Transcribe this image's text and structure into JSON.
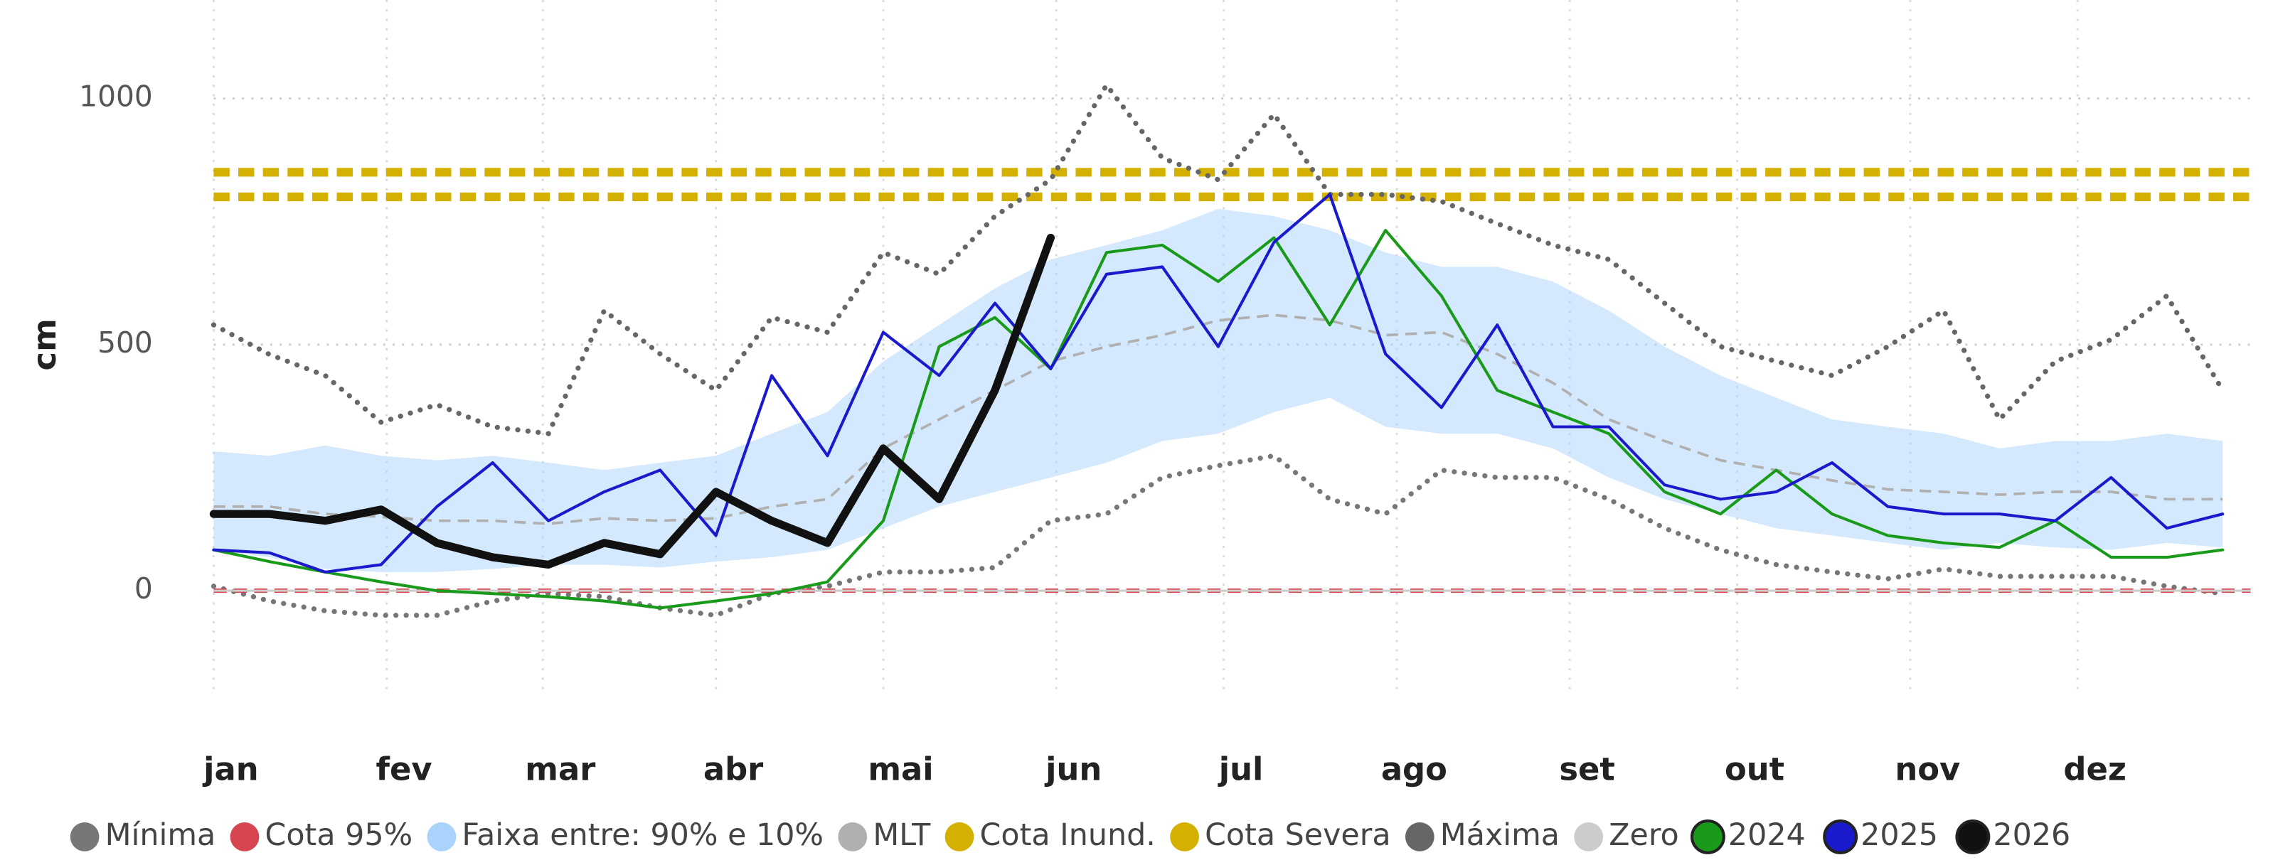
{
  "chart_data": {
    "type": "line",
    "y_label": "cm",
    "xlim": [
      0,
      365
    ],
    "xticks": [
      {
        "value": 0,
        "label": "jan"
      },
      {
        "value": 31,
        "label": "fev"
      },
      {
        "value": 59,
        "label": "mar"
      },
      {
        "value": 90,
        "label": "abr"
      },
      {
        "value": 120,
        "label": "mai"
      },
      {
        "value": 151,
        "label": "jun"
      },
      {
        "value": 181,
        "label": "jul"
      },
      {
        "value": 212,
        "label": "ago"
      },
      {
        "value": 243,
        "label": "set"
      },
      {
        "value": 273,
        "label": "out"
      },
      {
        "value": 304,
        "label": "nov"
      },
      {
        "value": 334,
        "label": "dez"
      }
    ],
    "ylim": [
      -200,
      1200
    ],
    "yticks": [
      0,
      500,
      1000
    ],
    "grid": true,
    "legend": "bottom",
    "x": [
      0,
      10,
      20,
      30,
      40,
      50,
      60,
      70,
      80,
      90,
      100,
      110,
      120,
      130,
      140,
      150,
      160,
      170,
      180,
      190,
      200,
      210,
      220,
      230,
      240,
      250,
      260,
      270,
      280,
      290,
      300,
      310,
      320,
      330,
      340,
      350,
      360
    ],
    "series": [
      {
        "name": "Mínima",
        "color": "#777777",
        "style": "dotted",
        "values": [
          9,
          -21,
          -41,
          -50,
          -50,
          -21,
          -6,
          -12,
          -35,
          -50,
          -6,
          9,
          38,
          38,
          47,
          142,
          156,
          230,
          254,
          274,
          186,
          156,
          245,
          230,
          230,
          186,
          127,
          83,
          53,
          38,
          24,
          44,
          29,
          29,
          29,
          9,
          -6
        ]
      },
      {
        "name": "Cota 95%",
        "color": "#d64550",
        "style": "dashed",
        "value": 0
      },
      {
        "name": "Faixa entre: 90% e 10%",
        "color": "#a9d3fb",
        "style": "band",
        "upper": [
          283,
          274,
          295,
          274,
          265,
          274,
          260,
          245,
          260,
          274,
          319,
          363,
          466,
          540,
          614,
          673,
          702,
          732,
          776,
          761,
          732,
          687,
          658,
          658,
          628,
          569,
          496,
          437,
          392,
          348,
          333,
          319,
          289,
          304,
          304,
          319,
          304
        ],
        "lower": [
          83,
          68,
          44,
          38,
          38,
          44,
          53,
          53,
          47,
          59,
          68,
          83,
          127,
          171,
          201,
          230,
          260,
          304,
          319,
          363,
          392,
          333,
          319,
          319,
          289,
          230,
          186,
          156,
          127,
          112,
          97,
          83,
          97,
          88,
          83,
          97,
          88
        ]
      },
      {
        "name": "MLT",
        "color": "#b0b0b0",
        "style": "dashed-thin",
        "values": [
          171,
          171,
          156,
          150,
          142,
          142,
          136,
          147,
          142,
          147,
          171,
          186,
          289,
          348,
          407,
          466,
          496,
          519,
          549,
          560,
          549,
          519,
          525,
          481,
          422,
          348,
          304,
          265,
          245,
          224,
          206,
          201,
          195,
          201,
          201,
          186,
          186
        ]
      },
      {
        "name": "Cota Inund.",
        "color": "#d4b000",
        "style": "dashed-thick",
        "value": 800
      },
      {
        "name": "Cota Severa",
        "color": "#d4b000",
        "style": "dashed-thick",
        "value": 850
      },
      {
        "name": "Máxima",
        "color": "#666666",
        "style": "dotted",
        "values": [
          540,
          480,
          437,
          342,
          378,
          333,
          319,
          569,
          481,
          407,
          555,
          525,
          687,
          643,
          761,
          835,
          1027,
          879,
          835,
          968,
          805,
          805,
          791,
          746,
          702,
          673,
          584,
          496,
          466,
          437,
          496,
          569,
          348,
          466,
          510,
          599,
          407
        ]
      },
      {
        "name": "Zero",
        "color": "#cccccc",
        "style": "solid-thin",
        "value": 0
      },
      {
        "name": "2024",
        "color": "#1a9a1a",
        "style": "line",
        "values": [
          83,
          59,
          38,
          18,
          0,
          -6,
          -12,
          -21,
          -35,
          -21,
          -6,
          18,
          142,
          496,
          555,
          451,
          687,
          702,
          628,
          717,
          540,
          732,
          599,
          407,
          363,
          319,
          201,
          156,
          245,
          156,
          112,
          97,
          88,
          142,
          68,
          68,
          83
        ]
      },
      {
        "name": "2025",
        "color": "#1a1acc",
        "style": "line",
        "values": [
          83,
          77,
          38,
          53,
          171,
          260,
          142,
          201,
          245,
          112,
          437,
          274,
          525,
          437,
          584,
          451,
          643,
          658,
          496,
          708,
          805,
          481,
          372,
          540,
          333,
          333,
          215,
          186,
          201,
          260,
          171,
          156,
          156,
          142,
          230,
          127,
          156
        ]
      },
      {
        "name": "2026",
        "color": "#111111",
        "style": "thick",
        "values": [
          156,
          156,
          142,
          165,
          97,
          68,
          53,
          97,
          74,
          201,
          142,
          97,
          289,
          186,
          407,
          717,
          null,
          null,
          null,
          null,
          null,
          null,
          null,
          null,
          null,
          null,
          null,
          null,
          null,
          null,
          null,
          null,
          null,
          null,
          null,
          null,
          null
        ]
      }
    ]
  }
}
